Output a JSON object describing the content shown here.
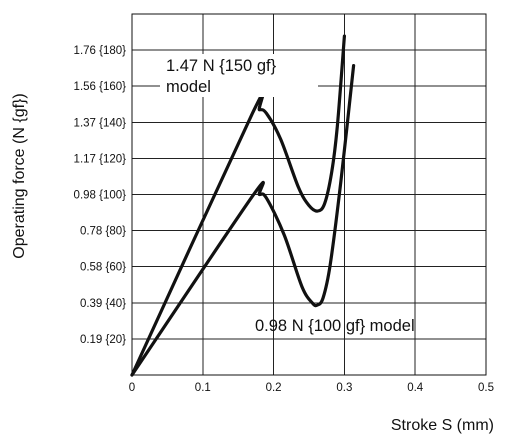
{
  "chart_data": {
    "type": "line",
    "xlabel": "Stroke S (mm)",
    "ylabel": "Operating force (N {gf})",
    "xlim": [
      0,
      0.5
    ],
    "ylim": [
      0,
      1.96
    ],
    "grid": true,
    "x_ticks": [
      {
        "value": 0,
        "label": "0"
      },
      {
        "value": 0.1,
        "label": "0.1"
      },
      {
        "value": 0.2,
        "label": "0.2"
      },
      {
        "value": 0.3,
        "label": "0.3"
      },
      {
        "value": 0.4,
        "label": "0.4"
      },
      {
        "value": 0.5,
        "label": "0.5"
      }
    ],
    "y_ticks": [
      {
        "value": 0.196,
        "label": "0.19 {20}"
      },
      {
        "value": 0.392,
        "label": "0.39 {40}"
      },
      {
        "value": 0.588,
        "label": "0.58 {60}"
      },
      {
        "value": 0.784,
        "label": "0.78 {80}"
      },
      {
        "value": 0.98,
        "label": "0.98 {100}"
      },
      {
        "value": 1.176,
        "label": "1.17 {120}"
      },
      {
        "value": 1.372,
        "label": "1.37 {140}"
      },
      {
        "value": 1.568,
        "label": "1.56 {160}"
      },
      {
        "value": 1.764,
        "label": "1.76 {180}"
      }
    ],
    "series": [
      {
        "name": "1.47 N {150 gf} model",
        "label_lines": [
          "1.47 N {150 gf}",
          "model"
        ],
        "points": [
          [
            0,
            0
          ],
          [
            0.17,
            1.42
          ],
          [
            0.18,
            1.44
          ],
          [
            0.19,
            1.42
          ],
          [
            0.21,
            1.28
          ],
          [
            0.235,
            1.02
          ],
          [
            0.25,
            0.92
          ],
          [
            0.262,
            0.89
          ],
          [
            0.272,
            0.93
          ],
          [
            0.282,
            1.1
          ],
          [
            0.29,
            1.35
          ],
          [
            0.3,
            1.84
          ]
        ]
      },
      {
        "name": "0.98 N {100 gf} model",
        "label_lines": [
          "0.98 N {100 gf} model"
        ],
        "points": [
          [
            0,
            0
          ],
          [
            0.17,
            0.97
          ],
          [
            0.18,
            0.98
          ],
          [
            0.19,
            0.96
          ],
          [
            0.215,
            0.76
          ],
          [
            0.24,
            0.48
          ],
          [
            0.255,
            0.39
          ],
          [
            0.262,
            0.38
          ],
          [
            0.27,
            0.42
          ],
          [
            0.28,
            0.6
          ],
          [
            0.295,
            1.05
          ],
          [
            0.313,
            1.68
          ]
        ]
      }
    ]
  }
}
